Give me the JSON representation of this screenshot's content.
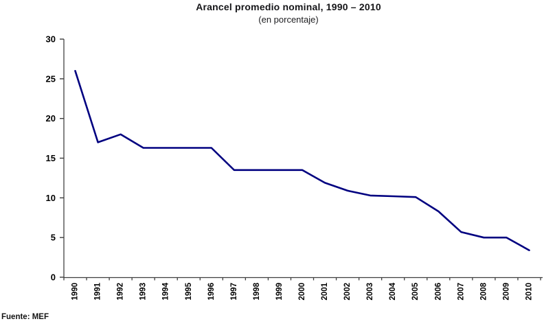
{
  "title": "Arancel promedio nominal, 1990 – 2010",
  "subtitle": "(en porcentaje)",
  "source": "Fuente: MEF",
  "chart_data": {
    "type": "line",
    "title": "Arancel promedio nominal, 1990 – 2010",
    "subtitle": "(en porcentaje)",
    "xlabel": "",
    "ylabel": "",
    "categories": [
      "1990",
      "1991",
      "1992",
      "1993",
      "1994",
      "1995",
      "1996",
      "1997",
      "1998",
      "1999",
      "2000",
      "2001",
      "2002",
      "2003",
      "2004",
      "2005",
      "2006",
      "2007",
      "2008",
      "2009",
      "2010"
    ],
    "values": [
      26,
      17,
      18,
      16.3,
      16.3,
      16.3,
      16.3,
      13.5,
      13.5,
      13.5,
      13.5,
      11.9,
      10.9,
      10.3,
      10.2,
      10.1,
      8.3,
      5.7,
      5,
      5,
      3.4
    ],
    "ylim": [
      0,
      30
    ],
    "ytick_step": 5,
    "grid": false,
    "legend": "none",
    "markers": "none",
    "x_label_rotation": -90,
    "line_color": "#000080",
    "axis_color": "#848484",
    "tick_color": "#3d3d3d",
    "label_color": "#000000"
  }
}
